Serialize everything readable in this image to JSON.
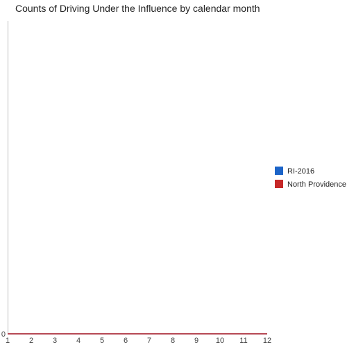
{
  "chart_data": {
    "type": "line",
    "title": "Counts of Driving Under the Influence by calendar month",
    "xlabel": "",
    "ylabel": "",
    "x": [
      1,
      2,
      3,
      4,
      5,
      6,
      7,
      8,
      9,
      10,
      11,
      12
    ],
    "xlim": [
      1,
      12
    ],
    "ylim": [
      0,
      1
    ],
    "y_ticks": [
      "0"
    ],
    "grid": false,
    "legend_position": "right",
    "series": [
      {
        "name": "RI-2016",
        "color": "#1c64c8",
        "values": [
          0,
          0,
          0,
          0,
          0,
          0,
          0,
          0,
          0,
          0,
          0,
          0
        ]
      },
      {
        "name": "North Providence",
        "color": "#c62828",
        "values": [
          0,
          0,
          0,
          0,
          0,
          0,
          0,
          0,
          0,
          0,
          0,
          0
        ]
      }
    ]
  }
}
